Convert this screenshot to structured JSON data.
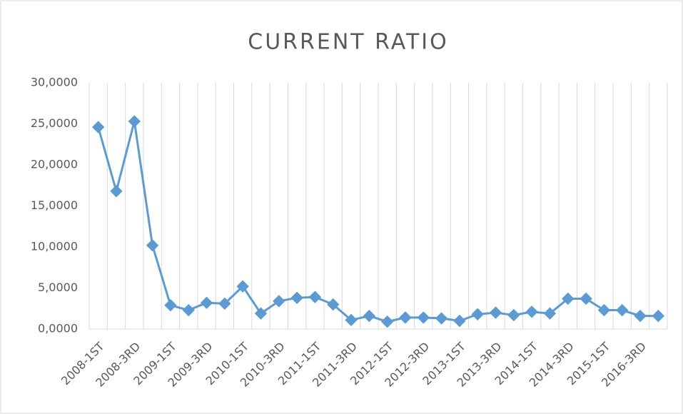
{
  "chart_data": {
    "type": "line",
    "title": "CURRENT RATIO",
    "categories": [
      "2008-1ST",
      null,
      "2008-3RD",
      null,
      "2009-1ST",
      null,
      "2009-3RD",
      null,
      "2010-1ST",
      null,
      "2010-3RD",
      null,
      "2011-1ST",
      null,
      "2011-3RD",
      null,
      "2012-1ST",
      null,
      "2012-3RD",
      null,
      "2013-1ST",
      null,
      "2013-3RD",
      null,
      "2014-1ST",
      null,
      "2014-3RD",
      null,
      "2015-1ST",
      null,
      "2016-3RD",
      null
    ],
    "values": [
      24.6,
      16.8,
      25.3,
      10.2,
      2.9,
      2.3,
      3.2,
      3.1,
      5.2,
      1.9,
      3.4,
      3.8,
      3.9,
      3.0,
      1.1,
      1.6,
      0.9,
      1.4,
      1.4,
      1.3,
      1.0,
      1.8,
      2.0,
      1.7,
      2.1,
      1.9,
      3.7,
      3.7,
      2.3,
      2.3,
      1.6,
      1.6
    ],
    "color": "#5b9bd5",
    "ylim": [
      0,
      30
    ],
    "yticks": [
      {
        "value": 0,
        "label": "0,0000"
      },
      {
        "value": 5,
        "label": "5,0000"
      },
      {
        "value": 10,
        "label": "10,0000"
      },
      {
        "value": 15,
        "label": "15,0000"
      },
      {
        "value": 20,
        "label": "20,0000"
      },
      {
        "value": 25,
        "label": "25,0000"
      },
      {
        "value": 30,
        "label": "30,0000"
      }
    ],
    "grid": "x"
  }
}
